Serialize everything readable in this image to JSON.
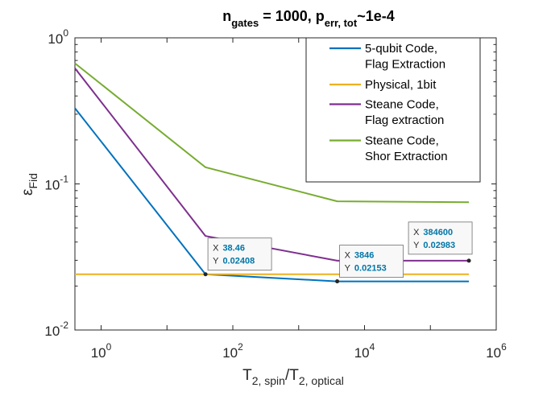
{
  "chart_data": {
    "type": "line",
    "title_parts": {
      "n": "n",
      "n_sub": "gates",
      "mid": " = 1000, p",
      "p_sub": "err, tot",
      "tail": "~1e-4"
    },
    "xlabel_parts": {
      "base": "T",
      "sub1": "2, spin",
      "slash": "/T",
      "sub2": "2, optical"
    },
    "ylabel_parts": {
      "base": "ε",
      "sub": "Fid"
    },
    "xscale": "log",
    "yscale": "log",
    "xlim": [
      0.4,
      1000000
    ],
    "ylim": [
      0.01,
      1
    ],
    "x_ticks": [
      {
        "value": 1,
        "base": "10",
        "exp": "0"
      },
      {
        "value": 100,
        "base": "10",
        "exp": "2"
      },
      {
        "value": 10000,
        "base": "10",
        "exp": "4"
      },
      {
        "value": 1000000,
        "base": "10",
        "exp": "6"
      }
    ],
    "y_ticks": [
      {
        "value": 0.01,
        "base": "10",
        "exp": "-2"
      },
      {
        "value": 0.1,
        "base": "10",
        "exp": "-1"
      },
      {
        "value": 1,
        "base": "10",
        "exp": "0"
      }
    ],
    "grid": false,
    "legend_position": "top-right",
    "series": [
      {
        "name_lines": [
          "5-qubit Code,",
          "Flag Extraction"
        ],
        "color": "#0072bd",
        "points": [
          [
            0.4,
            0.33
          ],
          [
            38.46,
            0.02408
          ],
          [
            3846,
            0.02153
          ],
          [
            384600,
            0.02153
          ]
        ]
      },
      {
        "name_lines": [
          "Physical, 1bit"
        ],
        "color": "#edb120",
        "points": [
          [
            0.4,
            0.02408
          ],
          [
            384600,
            0.02408
          ]
        ]
      },
      {
        "name_lines": [
          "Steane Code,",
          "Flag extraction"
        ],
        "color": "#7e2f8e",
        "points": [
          [
            0.4,
            0.62
          ],
          [
            38.46,
            0.044
          ],
          [
            3846,
            0.02983
          ],
          [
            384600,
            0.02983
          ]
        ]
      },
      {
        "name_lines": [
          "Steane Code,",
          "Shor Extraction"
        ],
        "color": "#77ac30",
        "points": [
          [
            0.4,
            0.67
          ],
          [
            38.46,
            0.13
          ],
          [
            3846,
            0.076
          ],
          [
            384600,
            0.075
          ]
        ]
      }
    ],
    "datatips": [
      {
        "x": 38.46,
        "y": 0.02408,
        "x_key": "X",
        "y_key": "Y",
        "x_text": "38.46",
        "y_text": "0.02408",
        "anchor": "upper-right"
      },
      {
        "x": 3846,
        "y": 0.02153,
        "x_key": "X",
        "y_key": "Y",
        "x_text": "3846",
        "y_text": "0.02153",
        "anchor": "upper-right"
      },
      {
        "x": 384600,
        "y": 0.02983,
        "x_key": "X",
        "y_key": "Y",
        "x_text": "384600",
        "y_text": "0.02983",
        "anchor": "upper-left"
      }
    ]
  }
}
